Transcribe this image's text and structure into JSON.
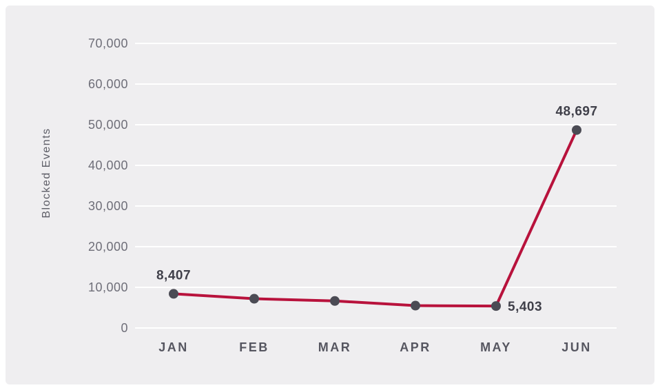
{
  "chart_data": {
    "type": "line",
    "title": "",
    "xlabel": "",
    "ylabel": "Blocked Events",
    "categories": [
      "JAN",
      "FEB",
      "MAR",
      "APR",
      "MAY",
      "JUN"
    ],
    "series": [
      {
        "name": "Blocked Events",
        "values": [
          8407,
          7200,
          6650,
          5500,
          5403,
          48697
        ]
      }
    ],
    "point_labels": [
      {
        "index": 0,
        "text": "8,407",
        "position": "above"
      },
      {
        "index": 4,
        "text": "5,403",
        "position": "right"
      },
      {
        "index": 5,
        "text": "48,697",
        "position": "above"
      }
    ],
    "y_ticks": [
      "70,000",
      "60,000",
      "50,000",
      "40,000",
      "30,000",
      "20,000",
      "10,000",
      "0"
    ],
    "ylim": [
      0,
      70000
    ],
    "y_tick_step": 10000,
    "grid": "horizontal",
    "legend": "none",
    "colors": {
      "line": "#b8123c",
      "marker": "#4b4b54",
      "grid": "#ffffff",
      "panel_bg": "#efeef0",
      "page_bg": "#ffffff",
      "y_tick_text": "#6e6e78",
      "x_tick_text": "#565660",
      "axis_title_text": "#5d5d66",
      "data_label_text": "#40404a"
    }
  }
}
